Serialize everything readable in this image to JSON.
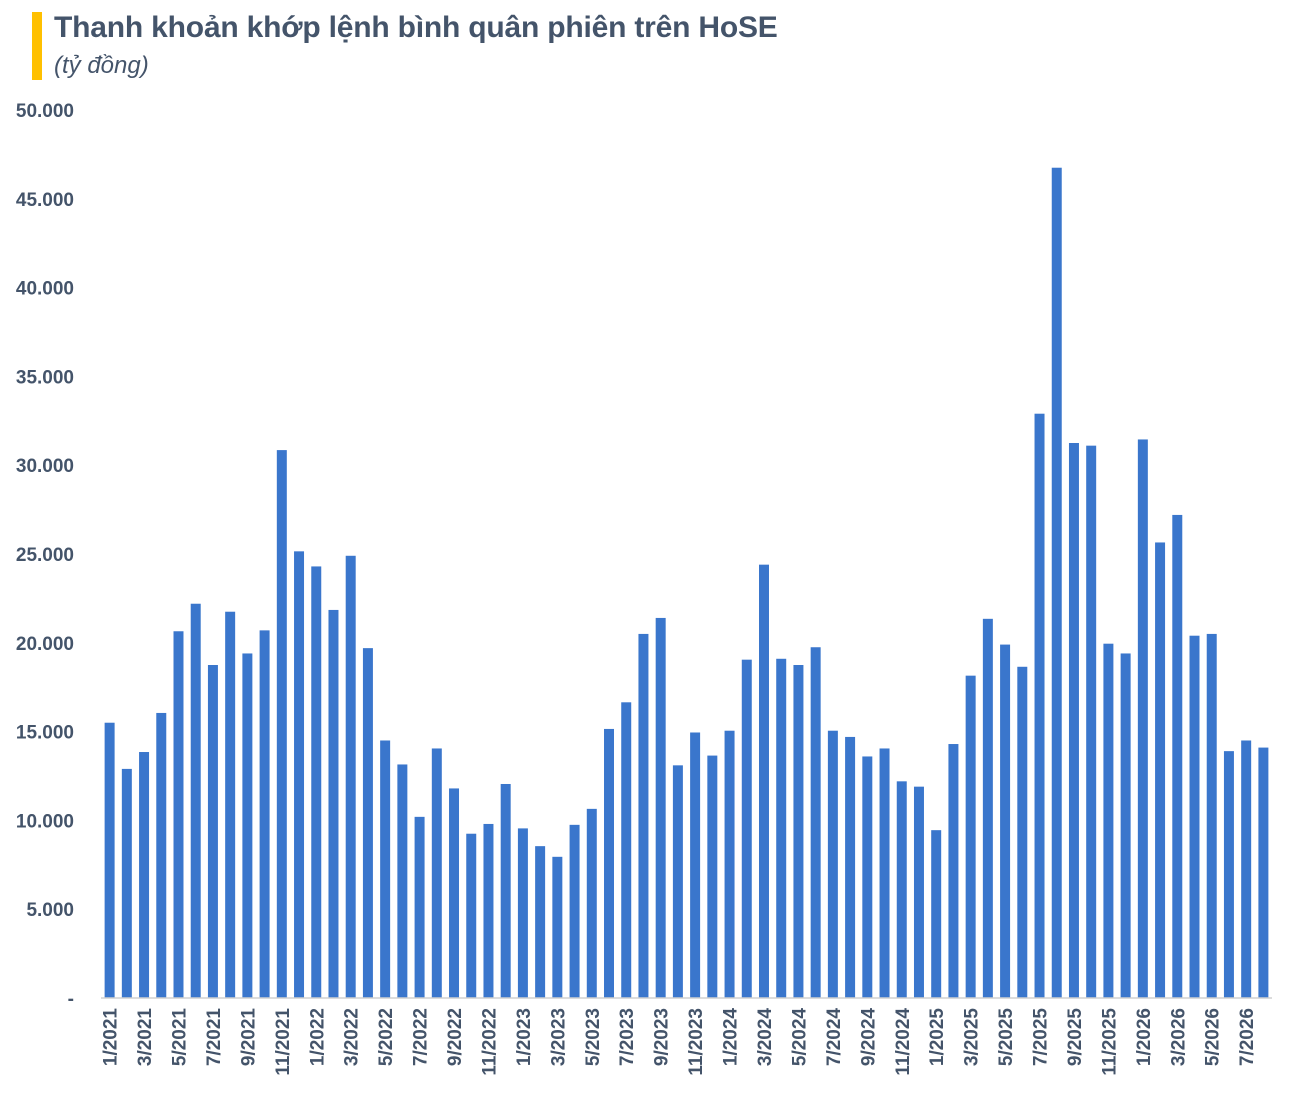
{
  "colors": {
    "accent_bar": "#ffc000",
    "series": "#3a76cc",
    "text": "#44546a",
    "axis": "#d0d0d0"
  },
  "chart_data": {
    "type": "bar",
    "title": "Thanh khoản khớp lệnh bình quân phiên trên HoSE",
    "subtitle": "(tỷ đồng)",
    "xlabel": "",
    "ylabel": "",
    "ylim": [
      0,
      50000
    ],
    "grid": false,
    "legend": "none",
    "y_ticks": [
      0,
      5000,
      10000,
      15000,
      20000,
      25000,
      30000,
      35000,
      40000,
      45000,
      50000
    ],
    "y_tick_labels": [
      "-",
      "5.000",
      "10.000",
      "15.000",
      "20.000",
      "25.000",
      "30.000",
      "35.000",
      "40.000",
      "45.000",
      "50.000"
    ],
    "categories": [
      "1/2021",
      "2/2021",
      "3/2021",
      "4/2021",
      "5/2021",
      "6/2021",
      "7/2021",
      "8/2021",
      "9/2021",
      "10/2021",
      "11/2021",
      "12/2021",
      "1/2022",
      "2/2022",
      "3/2022",
      "4/2022",
      "5/2022",
      "6/2022",
      "7/2022",
      "8/2022",
      "9/2022",
      "10/2022",
      "11/2022",
      "12/2022",
      "1/2023",
      "2/2023",
      "3/2023",
      "4/2023",
      "5/2023",
      "6/2023",
      "7/2023",
      "8/2023",
      "9/2023",
      "10/2023",
      "11/2023",
      "12/2023",
      "1/2024",
      "2/2024",
      "3/2024",
      "4/2024",
      "5/2024",
      "6/2024",
      "7/2024",
      "8/2024",
      "9/2024",
      "10/2024",
      "11/2024",
      "12/2024",
      "1/2025",
      "2/2025",
      "3/2025",
      "4/2025",
      "5/2025",
      "6/2025",
      "7/2025",
      "8/2025",
      "9/2025",
      "10/2025",
      "11/2025",
      "12/2025",
      "1/2026",
      "2/2026",
      "3/2026",
      "4/2026",
      "5/2026",
      "6/2026",
      "7/2026",
      "8/2026"
    ],
    "x_tick_labels": [
      "1/2021",
      "3/2021",
      "5/2021",
      "7/2021",
      "9/2021",
      "11/2021",
      "1/2022",
      "3/2022",
      "5/2022",
      "7/2022",
      "9/2022",
      "11/2022",
      "1/2023",
      "3/2023",
      "5/2023",
      "7/2023",
      "9/2023",
      "11/2023",
      "1/2024",
      "3/2024",
      "5/2024",
      "7/2024",
      "9/2024",
      "11/2024",
      "1/2025",
      "3/2025",
      "5/2025",
      "7/2025",
      "9/2025",
      "11/2025",
      "1/2026",
      "3/2026",
      "5/2026",
      "7/2026"
    ],
    "values": [
      15500,
      12900,
      13850,
      16050,
      20650,
      22200,
      18750,
      21750,
      19400,
      20700,
      30850,
      25150,
      24300,
      21850,
      24900,
      19700,
      14500,
      13150,
      10200,
      14050,
      11800,
      9250,
      9800,
      12050,
      9550,
      8550,
      7950,
      9750,
      10650,
      15150,
      16650,
      20500,
      21400,
      13100,
      14950,
      13650,
      15050,
      19050,
      24400,
      19100,
      18750,
      19750,
      15050,
      14700,
      13600,
      14050,
      12200,
      11900,
      9450,
      14300,
      18150,
      21350,
      19900,
      18650,
      32900,
      46750,
      31250,
      31100,
      19950,
      19400,
      31450,
      25650,
      27200,
      20400,
      20500,
      13900,
      14500,
      14100
    ]
  }
}
